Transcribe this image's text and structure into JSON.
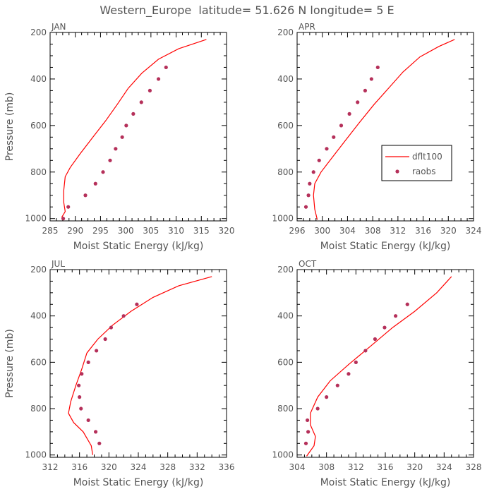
{
  "title": "Western_Europe  latitude= 51.626 N longitude= 5 E",
  "legend": {
    "line_label": "dflt100",
    "points_label": "raobs"
  },
  "colors": {
    "line": "#ff0000",
    "points": "#b5305a"
  },
  "chart_data": [
    {
      "type": "line",
      "panel": "JAN",
      "xlabel": "Moist Static Energy (kJ/kg)",
      "ylabel": "Pressure (mb)",
      "xlim": [
        285,
        320
      ],
      "ylim": [
        1010,
        200
      ],
      "xticks": [
        285,
        290,
        295,
        300,
        305,
        310,
        315,
        320
      ],
      "yticks": [
        200,
        400,
        600,
        800,
        1000
      ],
      "line": {
        "name": "dflt100",
        "x": [
          287.3,
          288.0,
          287.7,
          287.7,
          288.0,
          289.0,
          291.0,
          293.5,
          296.0,
          298.3,
          300.5,
          303.2,
          306.5,
          310.5,
          316.0
        ],
        "y": [
          995,
          970,
          930,
          880,
          820,
          780,
          720,
          650,
          580,
          510,
          440,
          375,
          315,
          270,
          230
        ]
      },
      "points": {
        "name": "raobs",
        "x": [
          287.6,
          288.6,
          292.0,
          294.0,
          295.5,
          296.9,
          298.0,
          299.3,
          300.1,
          301.5,
          303.1,
          304.8,
          306.5,
          308.0
        ],
        "y": [
          1000,
          950,
          900,
          850,
          800,
          750,
          700,
          650,
          600,
          550,
          500,
          450,
          400,
          350
        ]
      }
    },
    {
      "type": "line",
      "panel": "APR",
      "xlabel": "Moist Static Energy (kJ/kg)",
      "ylabel": "",
      "xlim": [
        296,
        324
      ],
      "ylim": [
        1010,
        200
      ],
      "xticks": [
        296,
        300,
        304,
        308,
        312,
        316,
        320,
        324
      ],
      "yticks": [
        200,
        400,
        600,
        800,
        1000
      ],
      "line": {
        "name": "dflt100",
        "x": [
          299.2,
          298.8,
          298.6,
          298.8,
          299.8,
          301.5,
          303.5,
          305.8,
          308.2,
          310.5,
          312.8,
          315.5,
          318.5,
          321.0
        ],
        "y": [
          1005,
          960,
          900,
          850,
          800,
          740,
          670,
          590,
          510,
          440,
          370,
          305,
          260,
          230
        ]
      },
      "points": {
        "name": "raobs",
        "x": [
          297.4,
          297.8,
          298.0,
          298.6,
          299.5,
          300.7,
          301.8,
          303.0,
          304.3,
          305.6,
          306.8,
          307.8,
          308.8
        ],
        "y": [
          950,
          900,
          850,
          800,
          750,
          700,
          650,
          600,
          550,
          500,
          450,
          400,
          350
        ]
      }
    },
    {
      "type": "line",
      "panel": "JUL",
      "xlabel": "Moist Static Energy (kJ/kg)",
      "ylabel": "Pressure (mb)",
      "xlim": [
        312,
        336
      ],
      "ylim": [
        1010,
        200
      ],
      "xticks": [
        312,
        316,
        320,
        324,
        328,
        332,
        336
      ],
      "yticks": [
        200,
        400,
        600,
        800,
        1000
      ],
      "line": {
        "name": "dflt100",
        "x": [
          317.8,
          317.6,
          316.5,
          315.2,
          314.5,
          314.8,
          315.5,
          316.3,
          317.0,
          318.5,
          320.5,
          323.0,
          326.0,
          329.5,
          334.0
        ],
        "y": [
          1000,
          960,
          900,
          860,
          820,
          770,
          700,
          630,
          560,
          500,
          440,
          380,
          320,
          270,
          230
        ]
      },
      "points": {
        "name": "raobs",
        "x": [
          318.7,
          318.2,
          317.2,
          316.2,
          316.0,
          315.9,
          316.3,
          317.2,
          318.3,
          319.5,
          320.3,
          322.0,
          323.8
        ],
        "y": [
          950,
          900,
          850,
          800,
          750,
          700,
          650,
          600,
          550,
          500,
          450,
          400,
          350
        ]
      }
    },
    {
      "type": "line",
      "panel": "OCT",
      "xlabel": "Moist Static Energy (kJ/kg)",
      "ylabel": "",
      "xlim": [
        304,
        328
      ],
      "ylim": [
        1010,
        200
      ],
      "xticks": [
        304,
        308,
        312,
        316,
        320,
        324,
        328
      ],
      "yticks": [
        200,
        400,
        600,
        800,
        1000
      ],
      "line": {
        "name": "dflt100",
        "x": [
          305.3,
          306.3,
          306.5,
          305.8,
          305.8,
          306.8,
          308.5,
          311.0,
          314.0,
          317.0,
          320.0,
          323.0,
          325.0
        ],
        "y": [
          1005,
          960,
          920,
          870,
          820,
          750,
          680,
          610,
          530,
          450,
          380,
          300,
          230
        ]
      },
      "points": {
        "name": "raobs",
        "x": [
          305.2,
          305.5,
          305.4,
          306.8,
          308.0,
          309.5,
          311.0,
          312.0,
          313.3,
          314.6,
          315.9,
          317.4,
          319.0
        ],
        "y": [
          950,
          900,
          850,
          800,
          750,
          700,
          650,
          600,
          550,
          500,
          450,
          400,
          350
        ]
      }
    }
  ]
}
